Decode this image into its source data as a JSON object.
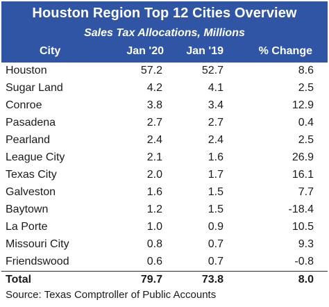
{
  "chart_data": {
    "type": "table",
    "title": "Houston Region Top 12 Cities Overview",
    "subtitle": "Sales Tax Allocations, Millions",
    "columns": [
      "City",
      "Jan '20",
      "Jan '19",
      "% Change"
    ],
    "rows": [
      {
        "city": "Houston",
        "jan20": "57.2",
        "jan19": "52.7",
        "change": "8.6"
      },
      {
        "city": "Sugar Land",
        "jan20": "4.2",
        "jan19": "4.1",
        "change": "2.5"
      },
      {
        "city": "Conroe",
        "jan20": "3.8",
        "jan19": "3.4",
        "change": "12.9"
      },
      {
        "city": "Pasadena",
        "jan20": "2.7",
        "jan19": "2.7",
        "change": "0.4"
      },
      {
        "city": "Pearland",
        "jan20": "2.4",
        "jan19": "2.4",
        "change": "2.5"
      },
      {
        "city": "League City",
        "jan20": "2.1",
        "jan19": "1.6",
        "change": "26.9"
      },
      {
        "city": "Texas City",
        "jan20": "2.0",
        "jan19": "1.7",
        "change": "16.1"
      },
      {
        "city": "Galveston",
        "jan20": "1.6",
        "jan19": "1.5",
        "change": "7.7"
      },
      {
        "city": "Baytown",
        "jan20": "1.2",
        "jan19": "1.5",
        "change": "-18.4"
      },
      {
        "city": "La Porte",
        "jan20": "1.0",
        "jan19": "0.9",
        "change": "10.5"
      },
      {
        "city": "Missouri City",
        "jan20": "0.8",
        "jan19": "0.7",
        "change": "9.3"
      },
      {
        "city": "Friendswood",
        "jan20": "0.6",
        "jan19": "0.7",
        "change": "-0.8"
      }
    ],
    "total": {
      "label": "Total",
      "jan20": "79.7",
      "jan19": "73.8",
      "change": "8.0"
    },
    "source": "Source: Texas Comptroller of Public Accounts"
  },
  "colors": {
    "header_bg": "#2f55a4",
    "header_text": "#ffffff",
    "body_text": "#1a1a1a"
  }
}
